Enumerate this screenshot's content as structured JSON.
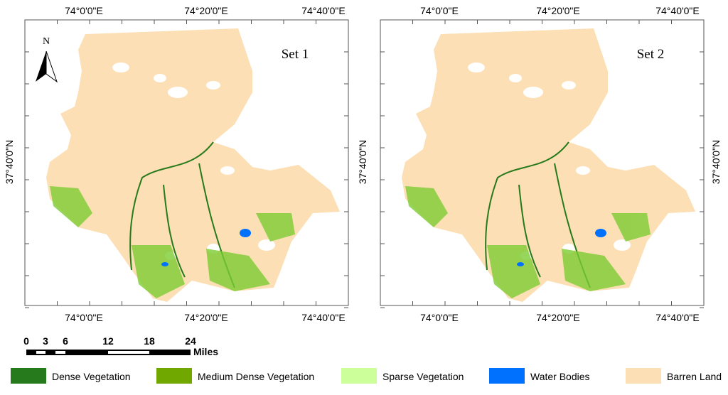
{
  "panels": [
    {
      "label": "Set 1"
    },
    {
      "label": "Set 2"
    }
  ],
  "lon_labels": [
    "74°0'0\"E",
    "74°20'0\"E",
    "74°40'0\"E"
  ],
  "lat_label": "37°40'0\"N",
  "north": "N",
  "scale_bar": {
    "labels": [
      "0",
      "3",
      "6",
      "12",
      "18",
      "24"
    ],
    "unit": "Miles"
  },
  "legend": [
    {
      "label": "Dense Vegetation",
      "color": "#267a1c"
    },
    {
      "label": "Medium Dense Vegetation",
      "color": "#70a800"
    },
    {
      "label": "Sparse Vegetation",
      "color": "#ccff99"
    },
    {
      "label": "Water Bodies",
      "color": "#0070ff"
    },
    {
      "label": "Barren Land",
      "color": "#fcdfb4"
    }
  ]
}
